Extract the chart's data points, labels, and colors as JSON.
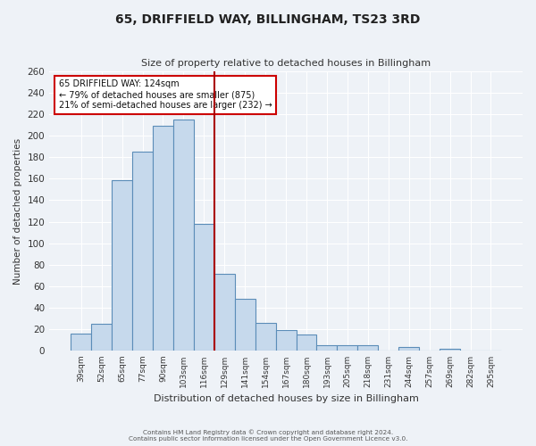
{
  "title": "65, DRIFFIELD WAY, BILLINGHAM, TS23 3RD",
  "subtitle": "Size of property relative to detached houses in Billingham",
  "xlabel": "Distribution of detached houses by size in Billingham",
  "ylabel": "Number of detached properties",
  "bar_color": "#c6d9ec",
  "bar_edge_color": "#5b8db8",
  "background_color": "#eef2f7",
  "grid_color": "#ffffff",
  "categories": [
    "39sqm",
    "52sqm",
    "65sqm",
    "77sqm",
    "90sqm",
    "103sqm",
    "116sqm",
    "129sqm",
    "141sqm",
    "154sqm",
    "167sqm",
    "180sqm",
    "193sqm",
    "205sqm",
    "218sqm",
    "231sqm",
    "244sqm",
    "257sqm",
    "269sqm",
    "282sqm",
    "295sqm"
  ],
  "values": [
    16,
    25,
    159,
    185,
    209,
    215,
    118,
    71,
    48,
    26,
    19,
    15,
    5,
    5,
    5,
    0,
    3,
    0,
    2,
    0,
    0
  ],
  "vline_color": "#aa0000",
  "annotation_title": "65 DRIFFIELD WAY: 124sqm",
  "annotation_line1": "← 79% of detached houses are smaller (875)",
  "annotation_line2": "21% of semi-detached houses are larger (232) →",
  "annotation_box_facecolor": "#ffffff",
  "annotation_box_edgecolor": "#cc0000",
  "ylim": [
    0,
    260
  ],
  "yticks": [
    0,
    20,
    40,
    60,
    80,
    100,
    120,
    140,
    160,
    180,
    200,
    220,
    240,
    260
  ],
  "footer_line1": "Contains HM Land Registry data © Crown copyright and database right 2024.",
  "footer_line2": "Contains public sector information licensed under the Open Government Licence v3.0."
}
